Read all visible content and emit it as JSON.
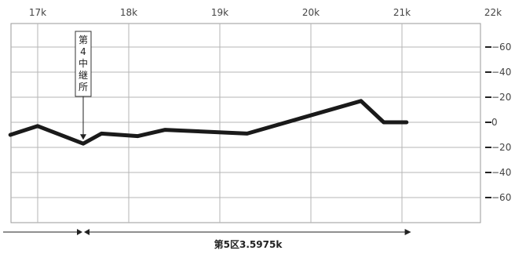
{
  "chart_data": {
    "type": "line",
    "xticks": [
      "17k",
      "18k",
      "19k",
      "20k",
      "21k",
      "22k"
    ],
    "yticks": [
      "−60",
      "−40",
      "−20",
      "0",
      "−20",
      "−40",
      "−60"
    ],
    "xlim": [
      16.7,
      22.0
    ],
    "ylim": [
      -80,
      80
    ],
    "grid": true,
    "series": [
      {
        "x": [
          16.7,
          17.0,
          17.5,
          17.7,
          18.1,
          18.4,
          19.3,
          20.55,
          20.8,
          21.05
        ],
        "values": [
          -10,
          -3,
          -17,
          -9,
          -11,
          -6,
          -9,
          17,
          0,
          0
        ]
      }
    ],
    "annotation": {
      "text_chars": [
        "第",
        "4",
        "中",
        "継",
        "所"
      ],
      "x": 17.5
    },
    "span": {
      "label": "第5区3.5975k",
      "from": 17.5,
      "to": 21.1
    }
  }
}
